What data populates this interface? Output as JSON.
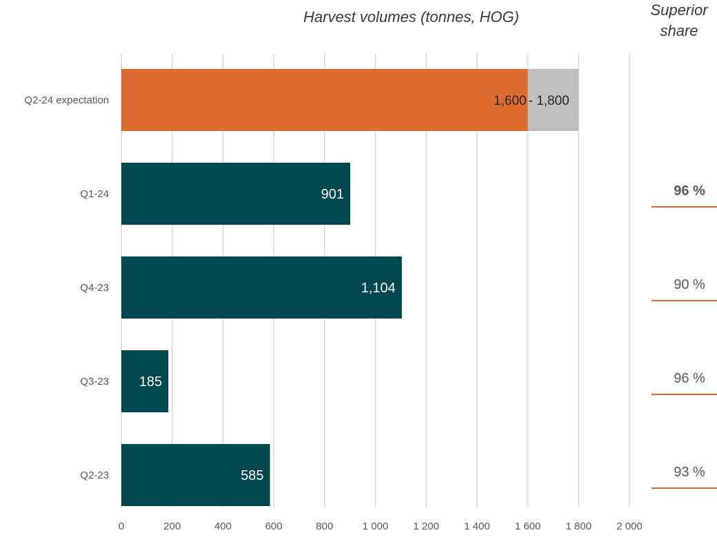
{
  "header": {
    "title": "Harvest volumes (tonnes, HOG)",
    "share_header_line1": "Superior",
    "share_header_line2": "share"
  },
  "colors": {
    "primary_bar": "#024650",
    "expectation_low": "#DE6B30",
    "expectation_range": "#BFBFBF",
    "share_rule": "#DE6B30",
    "gridline": "#D9D9D9",
    "text": "#595959"
  },
  "chart_data": {
    "type": "bar",
    "orientation": "horizontal",
    "title": "Harvest volumes (tonnes, HOG)",
    "xlim": [
      0,
      2000
    ],
    "x_ticks": [
      0,
      200,
      400,
      600,
      800,
      1000,
      1200,
      1400,
      1600,
      1800,
      2000
    ],
    "x_tick_labels": [
      "0",
      "200",
      "400",
      "600",
      "800",
      "1 000",
      "1 200",
      "1 400",
      "1 600",
      "1 800",
      "2 000"
    ],
    "grid": true,
    "categories": [
      "Q2-24 expectation",
      "Q1-24",
      "Q4-23",
      "Q3-23",
      "Q2-23"
    ],
    "expectation": {
      "category": "Q2-24 expectation",
      "low": 1600,
      "high": 1800,
      "low_label": "1,600",
      "range_label": " - 1,800"
    },
    "values": [
      null,
      901,
      1104,
      185,
      585
    ],
    "value_labels": [
      "",
      "901",
      "1,104",
      "185",
      "585"
    ],
    "superior_share": [
      "",
      "96 %",
      "90 %",
      "96 %",
      "93 %"
    ],
    "superior_share_bold": [
      false,
      true,
      false,
      false,
      false
    ]
  }
}
